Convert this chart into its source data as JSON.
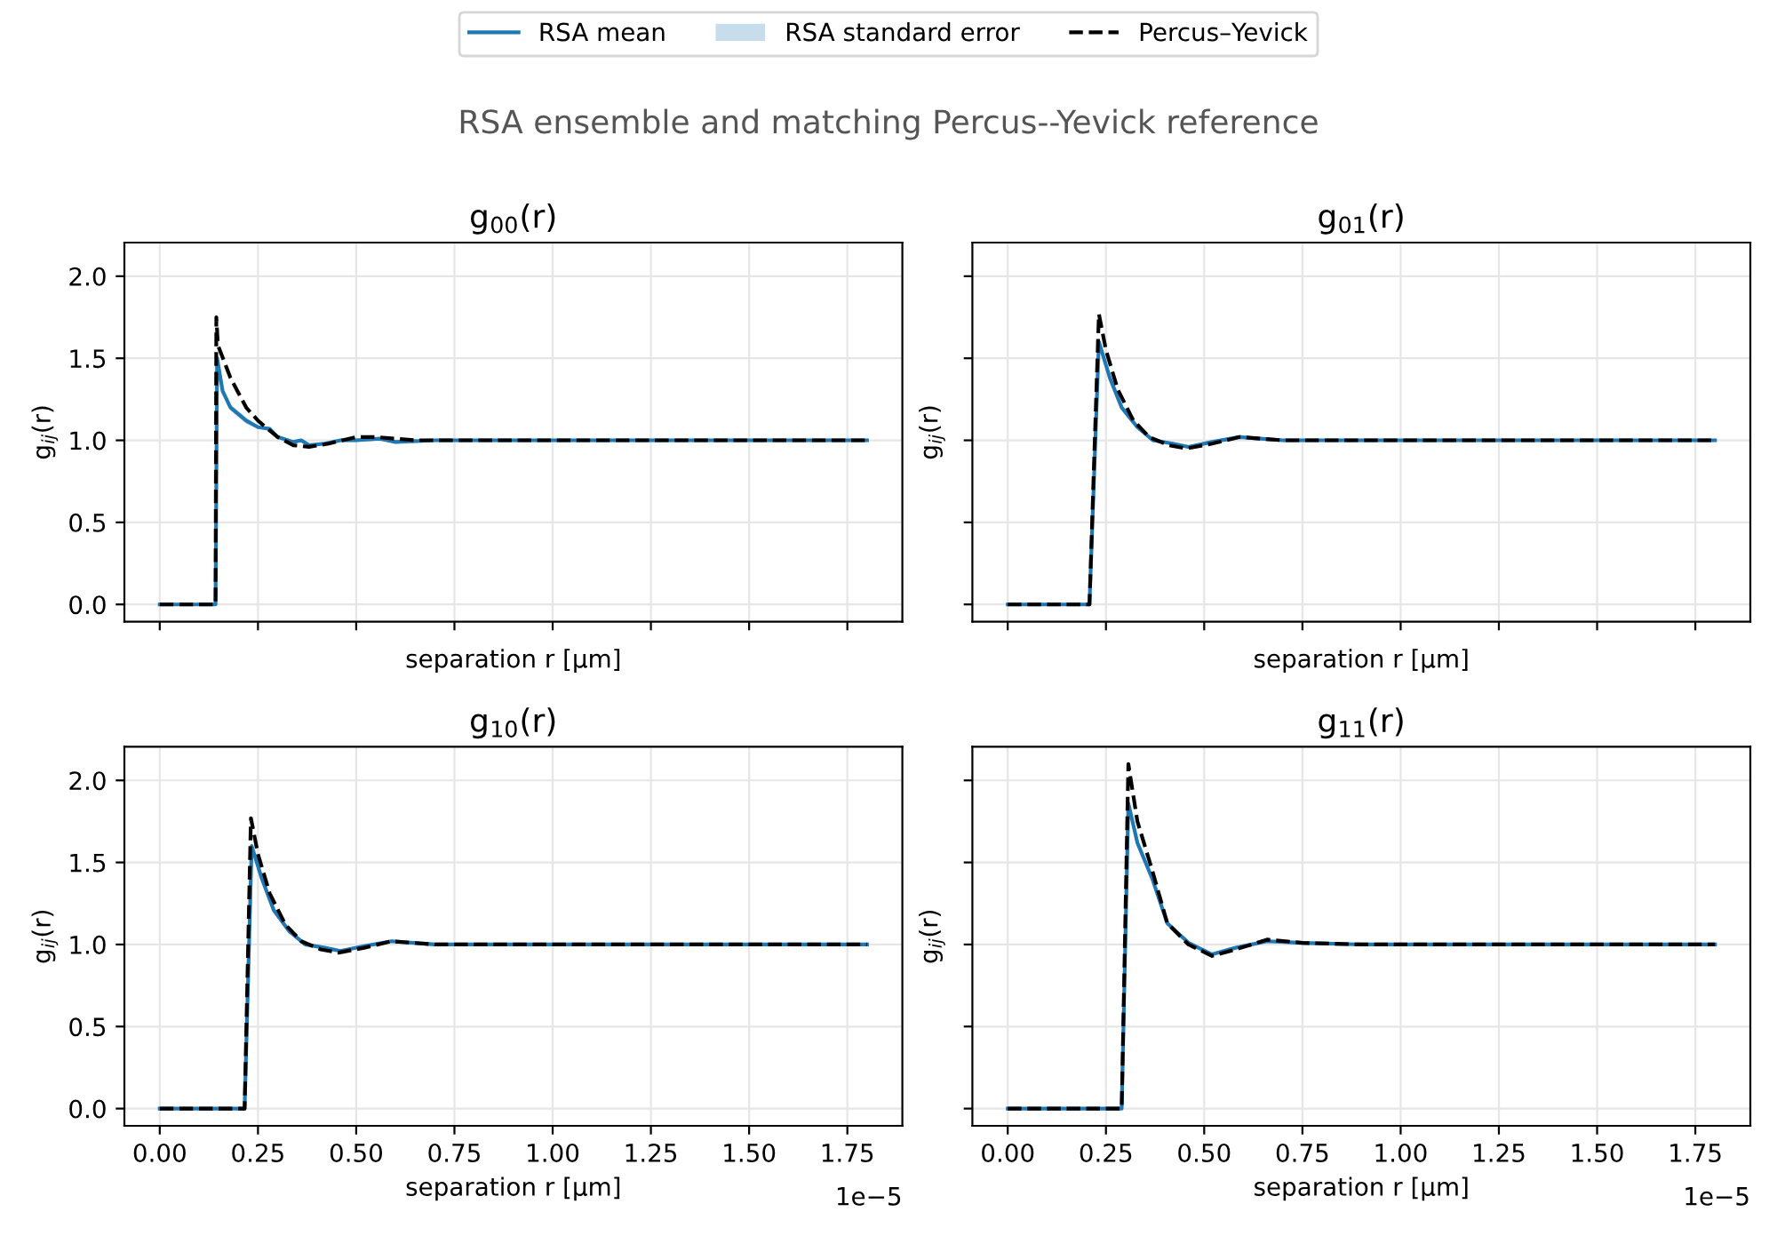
{
  "chart_data": [
    {
      "type": "line",
      "title": "g$_{00}$(r)",
      "xlabel": "separation r [μm]",
      "ylabel": "g$_{ij}$(r)",
      "tick_labels": "y",
      "legend": "top",
      "grid": true,
      "annotations": [
        "RSA ensemble and matching Percus--Yevick reference",
        "RSA standard error"
      ],
      "xlim": [
        -0.09,
        1.89
      ],
      "ylim": [
        -0.105,
        2.205
      ],
      "xticks": [
        0,
        0.25,
        0.5,
        0.75,
        1,
        1.25,
        1.5,
        1.75
      ],
      "yticks": [
        {
          "value": 0,
          "label": "0.0"
        },
        0.5,
        {
          "value": 1,
          "label": "1.0"
        },
        1.5,
        {
          "value": 2,
          "label": "2.0"
        }
      ],
      "series": [
        {
          "name": "RSA mean",
          "color": "#1f77b4",
          "line_style": "solid",
          "x": [
            0,
            0.142,
            0.146,
            0.16,
            0.18,
            0.22,
            0.25,
            0.28,
            0.3,
            0.34,
            0.36,
            0.38,
            0.42,
            0.46,
            0.5,
            0.56,
            0.6,
            0.7,
            0.8,
            1.0,
            1.2,
            1.4,
            1.6,
            1.8
          ],
          "values": [
            0,
            0,
            1.5,
            1.3,
            1.2,
            1.12,
            1.08,
            1.07,
            1.02,
            0.99,
            1.0,
            0.97,
            0.98,
            1.0,
            1.0,
            1.01,
            0.99,
            1.0,
            1.0,
            1.0,
            1.0,
            1.0,
            1.0,
            1.0
          ],
          "lower": [
            0,
            0,
            1.47,
            1.28,
            1.18,
            1.1,
            1.07,
            1.06,
            1.01,
            0.98,
            0.99,
            0.96,
            0.97,
            0.99,
            0.99,
            1.0,
            0.98,
            0.99,
            0.99,
            0.99,
            0.99,
            0.99,
            0.99,
            0.99
          ],
          "upper": [
            0,
            0,
            1.53,
            1.32,
            1.22,
            1.14,
            1.09,
            1.08,
            1.03,
            1.0,
            1.01,
            0.98,
            0.99,
            1.01,
            1.01,
            1.02,
            1.0,
            1.01,
            1.01,
            1.01,
            1.01,
            1.01,
            1.01,
            1.01
          ]
        },
        {
          "name": "Percus–Yevick",
          "color": "#000000",
          "line_style": "dashed",
          "x": [
            0,
            0.142,
            0.144,
            0.148,
            0.18,
            0.22,
            0.25,
            0.3,
            0.34,
            0.38,
            0.43,
            0.5,
            0.55,
            0.65,
            0.8,
            1.0,
            1.2,
            1.5,
            1.8
          ],
          "values": [
            0,
            0,
            1.75,
            1.58,
            1.38,
            1.2,
            1.12,
            1.02,
            0.97,
            0.96,
            0.98,
            1.02,
            1.02,
            1.0,
            1.0,
            1.0,
            1.0,
            1.0,
            1.0
          ]
        }
      ]
    },
    {
      "type": "line",
      "title": "g$_{01}$(r)",
      "xlabel": "separation r [μm]",
      "ylabel": "g$_{ij}$(r)",
      "tick_labels": false,
      "grid": true,
      "xlim": [
        -0.09,
        1.89
      ],
      "ylim": [
        -0.105,
        2.205
      ],
      "xticks": [
        0,
        0.25,
        0.5,
        0.75,
        1,
        1.25,
        1.5,
        1.75
      ],
      "yticks": [
        0,
        0.5,
        1,
        1.5,
        2
      ],
      "series": [
        {
          "color": "#1f77b4",
          "line_style": "solid",
          "x": [
            0,
            0.208,
            0.232,
            0.26,
            0.29,
            0.33,
            0.37,
            0.42,
            0.46,
            0.52,
            0.59,
            0.7,
            0.9,
            1.2,
            1.5,
            1.8
          ],
          "values": [
            0,
            0,
            1.6,
            1.38,
            1.2,
            1.08,
            1.0,
            0.98,
            0.96,
            0.99,
            1.02,
            1.0,
            1.0,
            1.0,
            1.0,
            1.0
          ],
          "lower": [
            0,
            0,
            1.57,
            1.36,
            1.19,
            1.07,
            0.99,
            0.97,
            0.95,
            0.98,
            1.01,
            0.99,
            0.99,
            0.99,
            0.99,
            0.99
          ],
          "upper": [
            0,
            0,
            1.63,
            1.4,
            1.21,
            1.09,
            1.01,
            0.99,
            0.97,
            1.0,
            1.03,
            1.01,
            1.01,
            1.01,
            1.01,
            1.01
          ]
        },
        {
          "color": "#000000",
          "line_style": "dashed",
          "x": [
            0,
            0.208,
            0.232,
            0.25,
            0.28,
            0.32,
            0.36,
            0.41,
            0.455,
            0.52,
            0.59,
            0.7,
            0.9,
            1.2,
            1.5,
            1.8
          ],
          "values": [
            0,
            0,
            1.77,
            1.55,
            1.31,
            1.12,
            1.02,
            0.97,
            0.95,
            0.98,
            1.02,
            1.0,
            1.0,
            1.0,
            1.0,
            1.0
          ]
        }
      ]
    },
    {
      "type": "line",
      "title": "g$_{10}$(r)",
      "xlabel": "separation r [μm]",
      "ylabel": "g$_{ij}$(r)",
      "grid": true,
      "annotations": [
        "1e−5"
      ],
      "xlim": [
        -0.09,
        1.89
      ],
      "ylim": [
        -0.105,
        2.205
      ],
      "xticks": [
        {
          "value": 0,
          "label": "0.00"
        },
        0.25,
        {
          "value": 0.5,
          "label": "0.50"
        },
        0.75,
        {
          "value": 1,
          "label": "1.00"
        },
        1.25,
        {
          "value": 1.5,
          "label": "1.50"
        },
        1.75
      ],
      "yticks": [
        {
          "value": 0,
          "label": "0.0"
        },
        0.5,
        {
          "value": 1,
          "label": "1.0"
        },
        1.5,
        {
          "value": 2,
          "label": "2.0"
        }
      ],
      "series": [
        {
          "color": "#1f77b4",
          "line_style": "solid",
          "x": [
            0,
            0.216,
            0.234,
            0.26,
            0.29,
            0.33,
            0.37,
            0.42,
            0.46,
            0.52,
            0.59,
            0.7,
            0.9,
            1.2,
            1.5,
            1.8
          ],
          "values": [
            0,
            0,
            1.6,
            1.4,
            1.21,
            1.08,
            1.0,
            0.98,
            0.96,
            0.99,
            1.02,
            1.0,
            1.0,
            1.0,
            1.0,
            1.0
          ],
          "lower": [
            0,
            0,
            1.57,
            1.38,
            1.2,
            1.07,
            0.99,
            0.97,
            0.95,
            0.98,
            1.01,
            0.99,
            0.99,
            0.99,
            0.99,
            0.99
          ],
          "upper": [
            0,
            0,
            1.63,
            1.42,
            1.22,
            1.09,
            1.01,
            0.99,
            0.97,
            1.0,
            1.03,
            1.01,
            1.01,
            1.01,
            1.01,
            1.01
          ]
        },
        {
          "color": "#000000",
          "line_style": "dashed",
          "x": [
            0,
            0.216,
            0.232,
            0.25,
            0.28,
            0.32,
            0.36,
            0.41,
            0.455,
            0.52,
            0.59,
            0.7,
            0.9,
            1.2,
            1.5,
            1.8
          ],
          "values": [
            0,
            0,
            1.77,
            1.55,
            1.31,
            1.12,
            1.02,
            0.97,
            0.95,
            0.98,
            1.02,
            1.0,
            1.0,
            1.0,
            1.0,
            1.0
          ]
        }
      ]
    },
    {
      "type": "line",
      "title": "g$_{11}$(r)",
      "xlabel": "separation r [μm]",
      "ylabel": "g$_{ij}$(r)",
      "tick_labels": "x",
      "grid": true,
      "annotations": [
        "1e−5"
      ],
      "xlim": [
        -0.09,
        1.89
      ],
      "ylim": [
        -0.105,
        2.205
      ],
      "xticks": [
        {
          "value": 0,
          "label": "0.00"
        },
        0.25,
        {
          "value": 0.5,
          "label": "0.50"
        },
        0.75,
        {
          "value": 1,
          "label": "1.00"
        },
        1.25,
        {
          "value": 1.5,
          "label": "1.50"
        },
        1.75
      ],
      "yticks": [
        0,
        0.5,
        1,
        1.5,
        2
      ],
      "series": [
        {
          "color": "#1f77b4",
          "line_style": "solid",
          "x": [
            0,
            0.29,
            0.307,
            0.33,
            0.368,
            0.406,
            0.46,
            0.52,
            0.58,
            0.66,
            0.75,
            0.9,
            1.2,
            1.5,
            1.8
          ],
          "values": [
            0,
            0,
            1.86,
            1.62,
            1.4,
            1.13,
            1.01,
            0.94,
            0.98,
            1.02,
            1.01,
            1.0,
            1.0,
            1.0,
            1.0
          ],
          "lower": [
            0,
            0,
            1.82,
            1.59,
            1.38,
            1.12,
            1.0,
            0.93,
            0.97,
            1.01,
            1.0,
            0.99,
            0.99,
            0.99,
            0.99
          ],
          "upper": [
            0,
            0,
            1.9,
            1.65,
            1.42,
            1.14,
            1.02,
            0.95,
            0.99,
            1.03,
            1.02,
            1.01,
            1.01,
            1.01,
            1.01
          ]
        },
        {
          "color": "#000000",
          "line_style": "dashed",
          "x": [
            0,
            0.29,
            0.307,
            0.33,
            0.368,
            0.406,
            0.46,
            0.52,
            0.58,
            0.66,
            0.75,
            0.9,
            1.2,
            1.5,
            1.8
          ],
          "values": [
            0,
            0,
            2.1,
            1.75,
            1.45,
            1.13,
            1.0,
            0.93,
            0.97,
            1.03,
            1.01,
            1.0,
            1.0,
            1.0,
            1.0
          ]
        }
      ]
    }
  ]
}
